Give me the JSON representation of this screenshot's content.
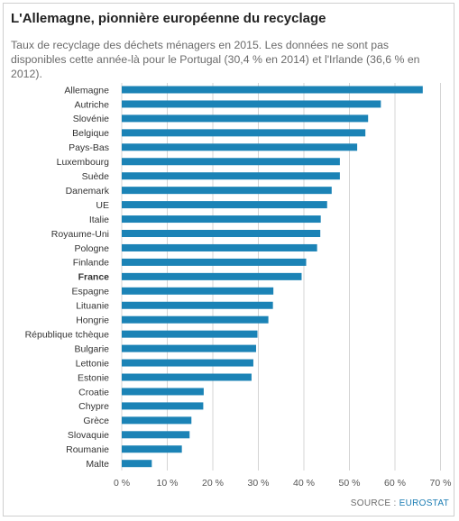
{
  "header": {
    "title": "L'Allemagne, pionnière européenne du recyclage",
    "subtitle": "Taux de recyclage des déchets ménagers en 2015. Les données ne sont pas disponibles cette année-là pour le Portugal (30,4 % en 2014) et l'Irlande (36,6 % en 2012)."
  },
  "footer": {
    "source_label": "SOURCE : ",
    "source_name": "EUROSTAT"
  },
  "colors": {
    "bar": "#1b83b6",
    "grid": "#d4d4d4",
    "label": "#333333",
    "tick": "#555555"
  },
  "chart_data": {
    "type": "bar",
    "orientation": "horizontal",
    "title": "L'Allemagne, pionnière européenne du recyclage",
    "subtitle": "Taux de recyclage des déchets ménagers en 2015. Les données ne sont pas disponibles cette année-là pour le Portugal (30,4 % en 2014) et l'Irlande (36,6 % en 2012).",
    "xlabel": "",
    "ylabel": "",
    "xlim": [
      0,
      70
    ],
    "x_ticks": [
      0,
      10,
      20,
      30,
      40,
      50,
      60,
      70
    ],
    "x_tick_labels": [
      "0 %",
      "10 %",
      "20 %",
      "30 %",
      "40 %",
      "50 %",
      "60 %",
      "70 %"
    ],
    "grid": true,
    "highlighted_category": "France",
    "categories": [
      "Allemagne",
      "Autriche",
      "Slovénie",
      "Belgique",
      "Pays-Bas",
      "Luxembourg",
      "Suède",
      "Danemark",
      "UE",
      "Italie",
      "Royaume-Uni",
      "Pologne",
      "Finlande",
      "France",
      "Espagne",
      "Lituanie",
      "Hongrie",
      "République tchèque",
      "Bulgarie",
      "Lettonie",
      "Estonie",
      "Croatie",
      "Chypre",
      "Grèce",
      "Slovaquie",
      "Roumanie",
      "Malte"
    ],
    "values": [
      66.1,
      56.9,
      54.1,
      53.5,
      51.7,
      47.9,
      47.9,
      46.1,
      45.1,
      43.7,
      43.6,
      42.9,
      40.5,
      39.5,
      33.3,
      33.2,
      32.2,
      29.8,
      29.5,
      28.9,
      28.5,
      18.0,
      17.9,
      15.3,
      14.9,
      13.2,
      6.6
    ]
  }
}
